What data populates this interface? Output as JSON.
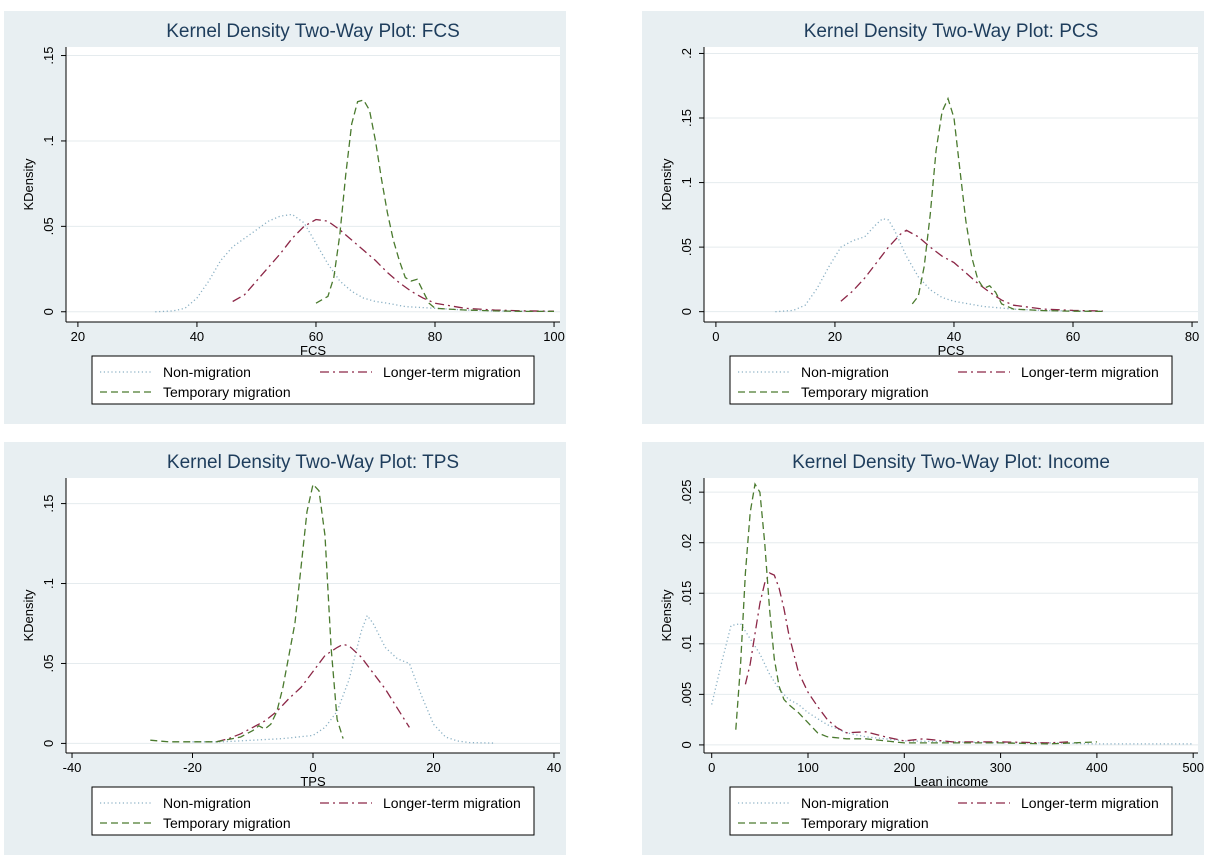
{
  "colors": {
    "panel_bg": "#e8eff2",
    "plot_bg": "#ffffff",
    "grid": "#e5ebee",
    "title": "#1e3d5c",
    "non_migration": "#8ab0c4",
    "longer_term": "#8c2747",
    "temporary": "#4a7a2e"
  },
  "legend_labels": {
    "non_migration": "Non-migration",
    "longer_term": "Longer-term migration",
    "temporary": "Temporary migration"
  },
  "chart_data": [
    {
      "type": "line",
      "title": "Kernel Density Two-Way Plot: FCS",
      "xlabel": "FCS",
      "ylabel": "KDensity",
      "xlim": [
        18,
        101
      ],
      "ylim": [
        -0.006,
        0.155
      ],
      "xticks": [
        20,
        40,
        60,
        80,
        100
      ],
      "xtick_labels": [
        "20",
        "40",
        "60",
        "80",
        "100"
      ],
      "yticks": [
        0,
        0.05,
        0.1,
        0.15
      ],
      "ytick_labels": [
        "0",
        ".05",
        ".1",
        ".15"
      ],
      "legend": "bottom",
      "series": [
        {
          "name": "Non-migration",
          "style": "dotted",
          "color": "#8ab0c4",
          "x": [
            33,
            36,
            38,
            40,
            42,
            44,
            46,
            48,
            50,
            52,
            54,
            56,
            58,
            60,
            62,
            64,
            66,
            68,
            70,
            72,
            75,
            80,
            85,
            90,
            95,
            100
          ],
          "y": [
            0,
            0.0005,
            0.002,
            0.008,
            0.018,
            0.03,
            0.038,
            0.043,
            0.048,
            0.053,
            0.056,
            0.057,
            0.052,
            0.04,
            0.028,
            0.018,
            0.012,
            0.008,
            0.006,
            0.005,
            0.003,
            0.002,
            0.001,
            0.0005,
            0.0003,
            0.0002
          ]
        },
        {
          "name": "Longer-term migration",
          "style": "dash-dot",
          "color": "#8c2747",
          "x": [
            46,
            48,
            50,
            52,
            54,
            56,
            58,
            60,
            62,
            64,
            66,
            68,
            70,
            72,
            74,
            76,
            78,
            80,
            85,
            90,
            95,
            100
          ],
          "y": [
            0.006,
            0.01,
            0.018,
            0.026,
            0.034,
            0.043,
            0.05,
            0.054,
            0.053,
            0.048,
            0.042,
            0.036,
            0.03,
            0.023,
            0.017,
            0.012,
            0.008,
            0.005,
            0.002,
            0.001,
            0.0005,
            0.0003
          ]
        },
        {
          "name": "Temporary migration",
          "style": "dashed",
          "color": "#4a7a2e",
          "x": [
            60,
            62,
            63,
            64,
            65,
            66,
            67,
            68,
            69,
            70,
            71,
            72,
            73,
            74,
            75,
            76,
            77,
            78,
            79,
            80,
            85,
            90,
            95,
            100
          ],
          "y": [
            0.005,
            0.009,
            0.02,
            0.045,
            0.08,
            0.11,
            0.123,
            0.124,
            0.118,
            0.1,
            0.078,
            0.058,
            0.042,
            0.03,
            0.02,
            0.018,
            0.019,
            0.012,
            0.005,
            0.002,
            0.001,
            0.0005,
            0.0002,
            0.0002
          ]
        }
      ]
    },
    {
      "type": "line",
      "title": "Kernel Density Two-Way Plot: PCS",
      "xlabel": "PCS",
      "ylabel": "KDensity",
      "xlim": [
        -2,
        81
      ],
      "ylim": [
        -0.008,
        0.205
      ],
      "xticks": [
        0,
        20,
        40,
        60,
        80
      ],
      "xtick_labels": [
        "0",
        "20",
        "40",
        "60",
        "80"
      ],
      "yticks": [
        0,
        0.05,
        0.1,
        0.15,
        0.2
      ],
      "ytick_labels": [
        "0",
        ".05",
        ".1",
        ".15",
        ".2"
      ],
      "legend": "bottom",
      "series": [
        {
          "name": "Non-migration",
          "style": "dotted",
          "color": "#8ab0c4",
          "x": [
            10,
            13,
            15,
            17,
            19,
            21,
            23,
            25,
            27,
            28,
            29,
            30,
            32,
            34,
            36,
            38,
            40,
            45,
            50,
            55,
            60,
            65
          ],
          "y": [
            0,
            0.001,
            0.005,
            0.018,
            0.035,
            0.05,
            0.055,
            0.058,
            0.068,
            0.072,
            0.071,
            0.063,
            0.043,
            0.027,
            0.017,
            0.011,
            0.008,
            0.004,
            0.002,
            0.001,
            0.0005,
            0.0003
          ]
        },
        {
          "name": "Longer-term migration",
          "style": "dash-dot",
          "color": "#8c2747",
          "x": [
            21,
            23,
            25,
            27,
            29,
            31,
            32,
            34,
            36,
            38,
            40,
            42,
            44,
            46,
            48,
            50,
            55,
            60,
            65
          ],
          "y": [
            0.008,
            0.016,
            0.026,
            0.038,
            0.05,
            0.06,
            0.063,
            0.058,
            0.05,
            0.043,
            0.038,
            0.03,
            0.022,
            0.015,
            0.009,
            0.005,
            0.002,
            0.001,
            0.0005
          ]
        },
        {
          "name": "Temporary migration",
          "style": "dashed",
          "color": "#4a7a2e",
          "x": [
            33,
            34,
            35,
            36,
            37,
            38,
            39,
            40,
            41,
            42,
            43,
            44,
            45,
            46,
            47,
            48,
            50,
            55,
            60,
            65
          ],
          "y": [
            0.006,
            0.012,
            0.035,
            0.075,
            0.125,
            0.155,
            0.165,
            0.15,
            0.11,
            0.07,
            0.042,
            0.025,
            0.018,
            0.02,
            0.015,
            0.006,
            0.002,
            0.0008,
            0.0004,
            0.0002
          ]
        }
      ]
    },
    {
      "type": "line",
      "title": "Kernel Density Two-Way Plot: TPS",
      "xlabel": "TPS",
      "ylabel": "KDensity",
      "xlim": [
        -41,
        41
      ],
      "ylim": [
        -0.006,
        0.166
      ],
      "xticks": [
        -40,
        -20,
        0,
        20,
        40
      ],
      "xtick_labels": [
        "-40",
        "-20",
        "0",
        "20",
        "40"
      ],
      "yticks": [
        0,
        0.05,
        0.1,
        0.15
      ],
      "ytick_labels": [
        "0",
        ".05",
        ".1",
        ".15"
      ],
      "legend": "bottom",
      "series": [
        {
          "name": "Non-migration",
          "style": "dotted",
          "color": "#8ab0c4",
          "x": [
            -20,
            -15,
            -10,
            -5,
            0,
            2,
            4,
            6,
            8,
            9,
            10,
            12,
            14,
            16,
            18,
            20,
            22,
            24,
            26,
            30
          ],
          "y": [
            0.001,
            0.001,
            0.002,
            0.003,
            0.005,
            0.01,
            0.02,
            0.04,
            0.07,
            0.08,
            0.075,
            0.06,
            0.053,
            0.05,
            0.03,
            0.012,
            0.004,
            0.0015,
            0.0005,
            0.0002
          ]
        },
        {
          "name": "Longer-term migration",
          "style": "dash-dot",
          "color": "#8c2747",
          "x": [
            -16,
            -14,
            -12,
            -10,
            -8,
            -6,
            -4,
            -2,
            0,
            2,
            4,
            5,
            6,
            8,
            10,
            12,
            14,
            16
          ],
          "y": [
            0.001,
            0.003,
            0.006,
            0.01,
            0.014,
            0.02,
            0.028,
            0.035,
            0.045,
            0.055,
            0.06,
            0.062,
            0.061,
            0.054,
            0.044,
            0.034,
            0.022,
            0.01
          ]
        },
        {
          "name": "Temporary migration",
          "style": "dashed",
          "color": "#4a7a2e",
          "x": [
            -27,
            -24,
            -20,
            -16,
            -12,
            -10,
            -9,
            -8,
            -7,
            -6,
            -5,
            -4,
            -3,
            -2,
            -1,
            0,
            1,
            2,
            3,
            4,
            5
          ],
          "y": [
            0.002,
            0.001,
            0.001,
            0.001,
            0.004,
            0.008,
            0.011,
            0.009,
            0.012,
            0.02,
            0.035,
            0.055,
            0.075,
            0.11,
            0.145,
            0.162,
            0.158,
            0.13,
            0.06,
            0.015,
            0.003
          ]
        }
      ]
    },
    {
      "type": "line",
      "title": "Kernel Density Two-Way Plot: Income",
      "xlabel": "Lean income",
      "ylabel": "KDensity",
      "xlim": [
        -8,
        505
      ],
      "ylim": [
        -0.0008,
        0.0264
      ],
      "xticks": [
        0,
        100,
        200,
        300,
        400,
        500
      ],
      "xtick_labels": [
        "0",
        "100",
        "200",
        "300",
        "400",
        "500"
      ],
      "yticks": [
        0,
        0.005,
        0.01,
        0.015,
        0.02,
        0.025
      ],
      "ytick_labels": [
        "0",
        ".005",
        ".01",
        ".015",
        ".02",
        ".025"
      ],
      "legend": "bottom",
      "series": [
        {
          "name": "Non-migration",
          "style": "dotted",
          "color": "#8ab0c4",
          "x": [
            0,
            10,
            20,
            30,
            40,
            50,
            60,
            70,
            80,
            90,
            100,
            120,
            140,
            160,
            180,
            200,
            250,
            300,
            350,
            400,
            450,
            500
          ],
          "y": [
            0.004,
            0.008,
            0.0118,
            0.012,
            0.0105,
            0.009,
            0.007,
            0.0055,
            0.0045,
            0.004,
            0.0032,
            0.002,
            0.0012,
            0.0008,
            0.0006,
            0.0004,
            0.0003,
            0.0002,
            0.0002,
            0.0001,
            0.0001,
            0.0001
          ]
        },
        {
          "name": "Longer-term migration",
          "style": "dash-dot",
          "color": "#8c2747",
          "x": [
            35,
            40,
            45,
            50,
            55,
            60,
            65,
            70,
            75,
            80,
            90,
            100,
            110,
            120,
            130,
            140,
            160,
            180,
            200,
            220,
            250,
            300,
            350,
            370
          ],
          "y": [
            0.006,
            0.008,
            0.011,
            0.014,
            0.016,
            0.017,
            0.0168,
            0.0155,
            0.0135,
            0.011,
            0.0072,
            0.0052,
            0.0038,
            0.0025,
            0.0017,
            0.0012,
            0.0013,
            0.0008,
            0.0004,
            0.0006,
            0.0003,
            0.0003,
            0.0002,
            0.0003
          ]
        },
        {
          "name": "Temporary migration",
          "style": "dashed",
          "color": "#4a7a2e",
          "x": [
            25,
            30,
            35,
            40,
            45,
            50,
            55,
            60,
            65,
            70,
            75,
            80,
            90,
            100,
            110,
            120,
            140,
            160,
            200,
            250,
            300,
            350,
            400
          ],
          "y": [
            0.0015,
            0.008,
            0.017,
            0.023,
            0.0258,
            0.025,
            0.02,
            0.0135,
            0.0085,
            0.0058,
            0.0045,
            0.004,
            0.0032,
            0.0022,
            0.0012,
            0.0008,
            0.0006,
            0.0006,
            0.0002,
            0.0002,
            0.0002,
            0.0001,
            0.0003
          ]
        }
      ]
    }
  ]
}
